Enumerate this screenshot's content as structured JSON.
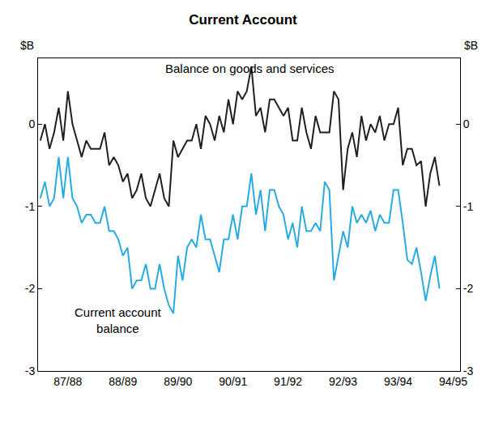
{
  "chart_data": {
    "type": "line",
    "title": "Current Account",
    "y_label": "$B",
    "categories": [
      null,
      null,
      null,
      null,
      null,
      null,
      "87/88",
      null,
      null,
      null,
      null,
      null,
      null,
      null,
      null,
      null,
      null,
      null,
      "88/89",
      null,
      null,
      null,
      null,
      null,
      null,
      null,
      null,
      null,
      null,
      null,
      "89/90",
      null,
      null,
      null,
      null,
      null,
      null,
      null,
      null,
      null,
      null,
      null,
      "90/91",
      null,
      null,
      null,
      null,
      null,
      null,
      null,
      null,
      null,
      null,
      null,
      "91/92",
      null,
      null,
      null,
      null,
      null,
      null,
      null,
      null,
      null,
      null,
      null,
      "92/93",
      null,
      null,
      null,
      null,
      null,
      null,
      null,
      null,
      null,
      null,
      null,
      "93/94",
      null,
      null,
      null,
      null,
      null,
      null,
      null,
      null,
      null,
      null,
      null,
      "94/95",
      null
    ],
    "series": [
      {
        "name": "Balance on goods and services",
        "color": "#231f20",
        "line_style": "solid",
        "values": [
          -0.2,
          0.0,
          -0.3,
          -0.1,
          0.2,
          -0.2,
          0.4,
          0.0,
          -0.2,
          -0.4,
          -0.2,
          -0.3,
          -0.3,
          -0.3,
          -0.1,
          -0.5,
          -0.4,
          -0.5,
          -0.7,
          -0.6,
          -0.9,
          -0.8,
          -0.6,
          -0.9,
          -1.0,
          -0.8,
          -0.6,
          -0.9,
          -1.0,
          -0.2,
          -0.4,
          -0.3,
          -0.2,
          -0.2,
          0.0,
          -0.3,
          0.1,
          0.0,
          -0.2,
          0.1,
          -0.1,
          0.3,
          0.0,
          0.4,
          0.3,
          0.4,
          0.7,
          0.1,
          0.2,
          -0.1,
          0.3,
          0.3,
          0.2,
          0.1,
          0.2,
          -0.2,
          -0.2,
          0.2,
          -0.1,
          -0.3,
          0.1,
          -0.1,
          -0.1,
          -0.1,
          0.4,
          0.3,
          -0.8,
          -0.3,
          -0.1,
          -0.4,
          0.1,
          -0.2,
          0.0,
          -0.1,
          0.1,
          -0.2,
          0.0,
          0.0,
          0.2,
          -0.5,
          -0.3,
          -0.3,
          -0.5,
          -0.45,
          -1.0,
          -0.6,
          -0.4,
          -0.75,
          null,
          null,
          null,
          null
        ]
      },
      {
        "name": "Current account balance",
        "color": "#29abe2",
        "line_style": "solid",
        "values": [
          -0.9,
          -0.7,
          -1.0,
          -0.9,
          -0.4,
          -0.9,
          -0.4,
          -0.9,
          -1.0,
          -1.2,
          -1.1,
          -1.1,
          -1.2,
          -1.2,
          -1.0,
          -1.3,
          -1.3,
          -1.4,
          -1.6,
          -1.5,
          -2.0,
          -1.9,
          -1.9,
          -1.7,
          -2.0,
          -2.0,
          -1.7,
          -2.0,
          -2.2,
          -2.3,
          -1.6,
          -1.9,
          -1.5,
          -1.4,
          -1.5,
          -1.1,
          -1.4,
          -1.4,
          -1.6,
          -1.8,
          -1.4,
          -1.4,
          -1.1,
          -1.4,
          -1.0,
          -1.0,
          -0.6,
          -1.1,
          -0.8,
          -1.3,
          -0.8,
          -0.8,
          -1.0,
          -1.1,
          -1.4,
          -1.2,
          -1.5,
          -1.0,
          -1.3,
          -1.3,
          -1.2,
          -1.3,
          -0.7,
          -0.8,
          -1.9,
          -1.6,
          -1.3,
          -1.5,
          -1.0,
          -1.2,
          -1.1,
          -1.2,
          -1.05,
          -1.3,
          -1.1,
          -1.2,
          -1.2,
          -0.8,
          -0.8,
          -1.2,
          -1.65,
          -1.7,
          -1.5,
          -1.8,
          -2.15,
          -1.85,
          -1.6,
          -2.0,
          null,
          null,
          null,
          null
        ]
      }
    ],
    "ylim": [
      -3,
      0.8
    ],
    "yticks": [
      -3,
      -2,
      -1,
      0
    ],
    "grid": false
  }
}
